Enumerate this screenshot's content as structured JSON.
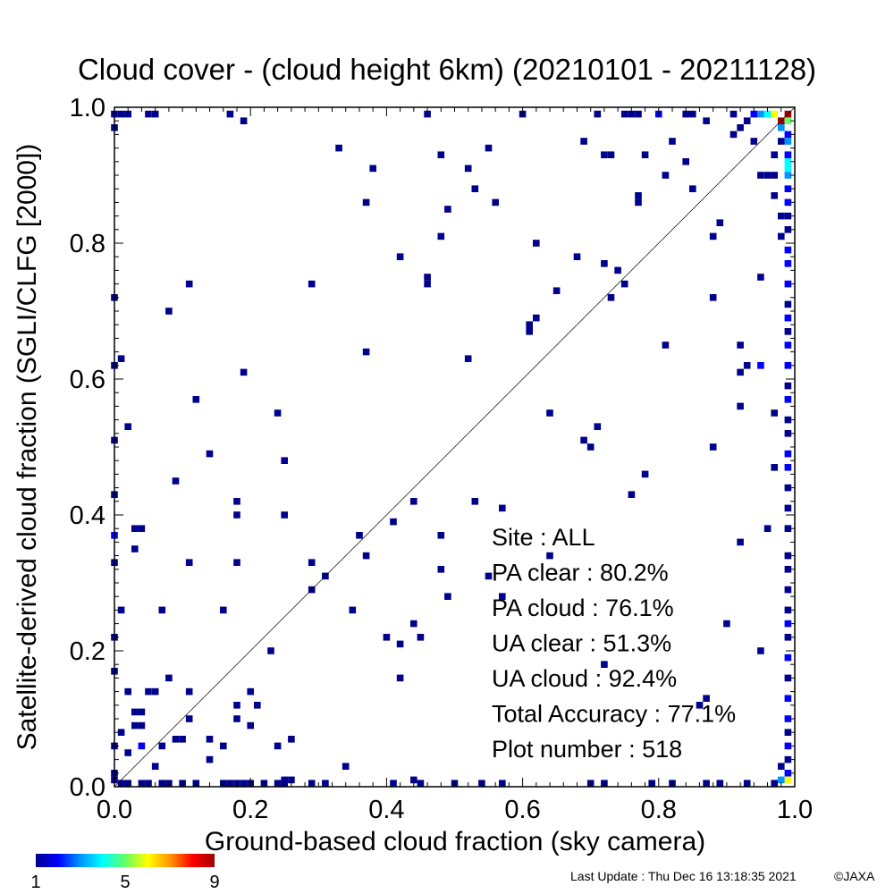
{
  "chart_data": {
    "type": "heatmap",
    "title": "Cloud cover - (cloud height 6km)  (20210101 - 20211128)",
    "xlabel": "Ground-based cloud fraction (sky camera)",
    "ylabel": "Satellite-derived cloud fraction (SGLI/CLFG [2000])",
    "xlim": [
      0,
      1
    ],
    "ylim": [
      0,
      1
    ],
    "x_ticks": [
      "0.0",
      "0.2",
      "0.4",
      "0.6",
      "0.8",
      "1.0"
    ],
    "y_ticks": [
      "0.0",
      "0.2",
      "0.4",
      "0.6",
      "0.8",
      "1.0"
    ],
    "reference_line": "1:1 diagonal",
    "grid": false,
    "colorbar": {
      "min": 1,
      "max": 9,
      "tick_labels": [
        "1",
        "5",
        "9"
      ],
      "colors": [
        "#00008c",
        "#0000ff",
        "#0096ff",
        "#00ffff",
        "#64ff64",
        "#ffff00",
        "#ff9600",
        "#ff0000",
        "#a00000"
      ]
    },
    "stats": [
      "Site : ALL",
      "PA clear :  80.2%",
      "PA cloud :  76.1%",
      "UA clear :  51.3%",
      "UA cloud :  92.4%",
      "Total Accuracy :  77.1%",
      "Plot number :       518"
    ],
    "cells": [
      [
        0.19,
        0.98,
        1
      ],
      [
        0.33,
        0.94,
        1
      ],
      [
        0.38,
        0.91,
        1
      ],
      [
        0.48,
        0.93,
        1
      ],
      [
        0.52,
        0.91,
        1
      ],
      [
        0.55,
        0.94,
        1
      ],
      [
        0.69,
        0.95,
        1
      ],
      [
        0.72,
        0.93,
        1
      ],
      [
        0.73,
        0.93,
        1
      ],
      [
        0.78,
        0.93,
        1
      ],
      [
        0.82,
        0.95,
        1
      ],
      [
        0.84,
        0.92,
        1
      ],
      [
        0.87,
        0.98,
        1
      ],
      [
        0.91,
        0.96,
        1
      ],
      [
        0.53,
        0.88,
        1
      ],
      [
        0.56,
        0.86,
        1
      ],
      [
        0.37,
        0.86,
        1
      ],
      [
        0.49,
        0.85,
        1
      ],
      [
        0.77,
        0.87,
        1
      ],
      [
        0.77,
        0.86,
        1
      ],
      [
        0.81,
        0.9,
        1
      ],
      [
        0.85,
        0.88,
        1
      ],
      [
        0.89,
        0.83,
        1
      ],
      [
        0.88,
        0.81,
        1
      ],
      [
        0.48,
        0.81,
        1
      ],
      [
        0.62,
        0.8,
        1
      ],
      [
        0.42,
        0.78,
        1
      ],
      [
        0.46,
        0.75,
        1
      ],
      [
        0.46,
        0.74,
        1
      ],
      [
        0.68,
        0.78,
        1
      ],
      [
        0.72,
        0.77,
        1
      ],
      [
        0.74,
        0.76,
        1
      ],
      [
        0.75,
        0.74,
        1
      ],
      [
        0.73,
        0.72,
        1
      ],
      [
        0.65,
        0.73,
        1
      ],
      [
        0.88,
        0.72,
        1
      ],
      [
        0.29,
        0.74,
        1
      ],
      [
        0.11,
        0.74,
        1
      ],
      [
        0.08,
        0.7,
        1
      ],
      [
        0.61,
        0.68,
        1
      ],
      [
        0.62,
        0.69,
        1
      ],
      [
        0.61,
        0.67,
        1
      ],
      [
        0.81,
        0.65,
        1
      ],
      [
        0.92,
        0.65,
        1
      ],
      [
        0.37,
        0.64,
        1
      ],
      [
        0.52,
        0.63,
        1
      ],
      [
        0.92,
        0.61,
        1
      ],
      [
        0.93,
        0.62,
        1
      ],
      [
        0.19,
        0.61,
        1
      ],
      [
        0.12,
        0.57,
        1
      ],
      [
        0.92,
        0.56,
        1
      ],
      [
        0.64,
        0.55,
        1
      ],
      [
        0.24,
        0.55,
        1
      ],
      [
        0.02,
        0.53,
        1
      ],
      [
        0.69,
        0.51,
        1
      ],
      [
        0.7,
        0.5,
        1
      ],
      [
        0.71,
        0.53,
        1
      ],
      [
        0.88,
        0.5,
        1
      ],
      [
        0.14,
        0.49,
        1
      ],
      [
        0.25,
        0.48,
        1
      ],
      [
        0.09,
        0.45,
        1
      ],
      [
        0.78,
        0.46,
        1
      ],
      [
        0.76,
        0.43,
        1
      ],
      [
        0.53,
        0.42,
        1
      ],
      [
        0.57,
        0.41,
        1
      ],
      [
        0.44,
        0.42,
        1
      ],
      [
        0.18,
        0.42,
        1
      ],
      [
        0.18,
        0.4,
        1
      ],
      [
        0.25,
        0.4,
        1
      ],
      [
        0.41,
        0.39,
        1
      ],
      [
        0.36,
        0.37,
        1
      ],
      [
        0.48,
        0.37,
        1
      ],
      [
        0.03,
        0.38,
        1
      ],
      [
        0.04,
        0.38,
        1
      ],
      [
        0.03,
        0.35,
        1
      ],
      [
        0.96,
        0.38,
        1
      ],
      [
        0.92,
        0.36,
        1
      ],
      [
        0.37,
        0.34,
        1
      ],
      [
        0.64,
        0.34,
        1
      ],
      [
        0.11,
        0.33,
        1
      ],
      [
        0.18,
        0.33,
        1
      ],
      [
        0.29,
        0.33,
        1
      ],
      [
        0.31,
        0.31,
        1
      ],
      [
        0.29,
        0.29,
        1
      ],
      [
        0.48,
        0.32,
        1
      ],
      [
        0.55,
        0.31,
        1
      ],
      [
        0.49,
        0.28,
        1
      ],
      [
        0.57,
        0.28,
        1
      ],
      [
        0.35,
        0.26,
        1
      ],
      [
        0.16,
        0.26,
        1
      ],
      [
        0.07,
        0.26,
        1
      ],
      [
        0.01,
        0.26,
        1
      ],
      [
        0.44,
        0.24,
        1
      ],
      [
        0.4,
        0.22,
        1
      ],
      [
        0.42,
        0.21,
        1
      ],
      [
        0.45,
        0.22,
        1
      ],
      [
        0.23,
        0.2,
        1
      ],
      [
        0.9,
        0.24,
        1
      ],
      [
        0.95,
        0.2,
        1
      ],
      [
        0.72,
        0.18,
        1
      ],
      [
        0.42,
        0.16,
        1
      ],
      [
        0.08,
        0.16,
        1
      ],
      [
        0.06,
        0.14,
        1
      ],
      [
        0.05,
        0.14,
        1
      ],
      [
        0.02,
        0.14,
        1
      ],
      [
        0.11,
        0.14,
        1
      ],
      [
        0.2,
        0.14,
        1
      ],
      [
        0.18,
        0.12,
        1
      ],
      [
        0.21,
        0.12,
        1
      ],
      [
        0.03,
        0.11,
        1
      ],
      [
        0.04,
        0.11,
        1
      ],
      [
        0.03,
        0.09,
        1
      ],
      [
        0.04,
        0.09,
        1
      ],
      [
        0.11,
        0.1,
        1
      ],
      [
        0.18,
        0.1,
        1
      ],
      [
        0.2,
        0.09,
        1
      ],
      [
        0.26,
        0.07,
        1
      ],
      [
        0.24,
        0.06,
        1
      ],
      [
        0.1,
        0.07,
        1
      ],
      [
        0.09,
        0.07,
        1
      ],
      [
        0.14,
        0.07,
        1
      ],
      [
        0.16,
        0.06,
        1
      ],
      [
        0.07,
        0.06,
        1
      ],
      [
        0.04,
        0.06,
        2
      ],
      [
        0.02,
        0.05,
        1
      ],
      [
        0.01,
        0.08,
        1
      ],
      [
        0.06,
        0.03,
        1
      ],
      [
        0.14,
        0.04,
        1
      ],
      [
        0.34,
        0.03,
        1
      ],
      [
        0.44,
        0.01,
        1
      ],
      [
        0.86,
        0.12,
        1
      ],
      [
        0.87,
        0.13,
        1
      ],
      [
        0.98,
        0.98,
        9
      ],
      [
        0.99,
        0.99,
        9
      ],
      [
        0.97,
        0.99,
        6
      ],
      [
        0.96,
        0.99,
        4
      ],
      [
        0.95,
        0.99,
        3
      ],
      [
        0.94,
        0.99,
        2
      ],
      [
        0.99,
        0.98,
        5
      ],
      [
        0.98,
        0.97,
        3
      ],
      [
        0.99,
        0.96,
        2
      ],
      [
        0.99,
        0.95,
        3
      ],
      [
        0.99,
        0.93,
        2
      ],
      [
        0.99,
        0.92,
        4
      ],
      [
        0.99,
        0.91,
        4
      ],
      [
        0.99,
        0.9,
        3
      ],
      [
        0.99,
        0.88,
        2
      ],
      [
        0.99,
        0.86,
        2
      ],
      [
        0.99,
        0.84,
        1
      ],
      [
        0.99,
        0.82,
        1
      ],
      [
        0.99,
        0.79,
        2
      ],
      [
        0.99,
        0.77,
        2
      ],
      [
        0.99,
        0.74,
        2
      ],
      [
        0.99,
        0.71,
        1
      ],
      [
        0.99,
        0.69,
        2
      ],
      [
        0.99,
        0.67,
        1
      ],
      [
        0.99,
        0.65,
        2
      ],
      [
        0.99,
        0.62,
        2
      ],
      [
        0.99,
        0.59,
        1
      ],
      [
        0.99,
        0.57,
        2
      ],
      [
        0.99,
        0.54,
        1
      ],
      [
        0.99,
        0.52,
        1
      ],
      [
        0.99,
        0.49,
        2
      ],
      [
        0.99,
        0.47,
        2
      ],
      [
        0.99,
        0.44,
        1
      ],
      [
        0.99,
        0.41,
        1
      ],
      [
        0.99,
        0.38,
        1
      ],
      [
        0.99,
        0.34,
        1
      ],
      [
        0.99,
        0.32,
        1
      ],
      [
        0.99,
        0.29,
        1
      ],
      [
        0.99,
        0.26,
        1
      ],
      [
        0.99,
        0.24,
        2
      ],
      [
        0.99,
        0.22,
        1
      ],
      [
        0.99,
        0.19,
        2
      ],
      [
        0.99,
        0.16,
        1
      ],
      [
        0.99,
        0.13,
        2
      ],
      [
        0.99,
        0.1,
        2
      ],
      [
        0.99,
        0.08,
        1
      ],
      [
        0.99,
        0.06,
        2
      ],
      [
        0.99,
        0.04,
        1
      ],
      [
        0.99,
        0.02,
        2
      ],
      [
        0.99,
        0.01,
        6
      ],
      [
        0.98,
        0.01,
        3
      ],
      [
        0.97,
        0.0,
        1
      ],
      [
        0.98,
        0.03,
        1
      ],
      [
        0.97,
        0.87,
        1
      ],
      [
        0.97,
        0.93,
        1
      ],
      [
        0.97,
        0.9,
        1
      ],
      [
        0.96,
        0.9,
        1
      ],
      [
        0.95,
        0.9,
        1
      ],
      [
        0.98,
        0.84,
        1
      ],
      [
        0.98,
        0.81,
        1
      ],
      [
        0.95,
        0.75,
        1
      ],
      [
        0.98,
        0.95,
        1
      ],
      [
        0.92,
        0.97,
        1
      ],
      [
        0.93,
        0.98,
        1
      ],
      [
        0.94,
        0.95,
        1
      ],
      [
        0.97,
        0.55,
        1
      ],
      [
        0.97,
        0.47,
        1
      ],
      [
        0.95,
        0.62,
        2
      ],
      [
        0.0,
        0.99,
        1
      ],
      [
        0.01,
        0.99,
        1
      ],
      [
        0.02,
        0.99,
        1
      ],
      [
        0.05,
        0.99,
        1
      ],
      [
        0.06,
        0.99,
        1
      ],
      [
        0.17,
        0.99,
        1
      ],
      [
        0.46,
        0.99,
        1
      ],
      [
        0.6,
        0.99,
        1
      ],
      [
        0.71,
        0.99,
        1
      ],
      [
        0.75,
        0.99,
        1
      ],
      [
        0.76,
        0.99,
        1
      ],
      [
        0.77,
        0.99,
        1
      ],
      [
        0.8,
        0.99,
        2
      ],
      [
        0.84,
        0.99,
        1
      ],
      [
        0.85,
        0.99,
        1
      ],
      [
        0.91,
        0.99,
        1
      ],
      [
        0.0,
        0.01,
        1
      ],
      [
        0.0,
        0.02,
        1
      ],
      [
        0.0,
        0.06,
        1
      ],
      [
        0.0,
        0.17,
        1
      ],
      [
        0.0,
        0.22,
        1
      ],
      [
        0.0,
        0.33,
        1
      ],
      [
        0.0,
        0.37,
        2
      ],
      [
        0.0,
        0.43,
        1
      ],
      [
        0.0,
        0.51,
        1
      ],
      [
        0.0,
        0.62,
        1
      ],
      [
        0.0,
        0.72,
        1
      ],
      [
        0.0,
        0.97,
        1
      ],
      [
        0.01,
        0.63,
        1
      ],
      [
        0.01,
        0.0,
        1
      ],
      [
        0.02,
        0.0,
        1
      ],
      [
        0.04,
        0.0,
        1
      ],
      [
        0.05,
        0.0,
        1
      ],
      [
        0.07,
        0.0,
        1
      ],
      [
        0.08,
        0.0,
        1
      ],
      [
        0.1,
        0.0,
        1
      ],
      [
        0.12,
        0.0,
        1
      ],
      [
        0.16,
        0.0,
        1
      ],
      [
        0.17,
        0.0,
        1
      ],
      [
        0.18,
        0.0,
        1
      ],
      [
        0.19,
        0.0,
        1
      ],
      [
        0.2,
        0.0,
        1
      ],
      [
        0.22,
        0.0,
        1
      ],
      [
        0.24,
        0.0,
        1
      ],
      [
        0.25,
        0.0,
        1
      ],
      [
        0.29,
        0.0,
        1
      ],
      [
        0.31,
        0.0,
        1
      ],
      [
        0.41,
        0.0,
        1
      ],
      [
        0.45,
        0.0,
        1
      ],
      [
        0.5,
        0.0,
        1
      ],
      [
        0.54,
        0.0,
        1
      ],
      [
        0.57,
        0.0,
        1
      ],
      [
        0.7,
        0.0,
        1
      ],
      [
        0.72,
        0.0,
        1
      ],
      [
        0.79,
        0.0,
        1
      ],
      [
        0.82,
        0.0,
        1
      ],
      [
        0.87,
        0.0,
        1
      ],
      [
        0.89,
        0.0,
        1
      ],
      [
        0.93,
        0.0,
        1
      ],
      [
        0.25,
        0.01,
        1
      ],
      [
        0.26,
        0.01,
        1
      ]
    ]
  },
  "footer": {
    "last_update": "Last Update : Thu Dec 16 13:18:35 2021",
    "copyright": "©JAXA"
  }
}
